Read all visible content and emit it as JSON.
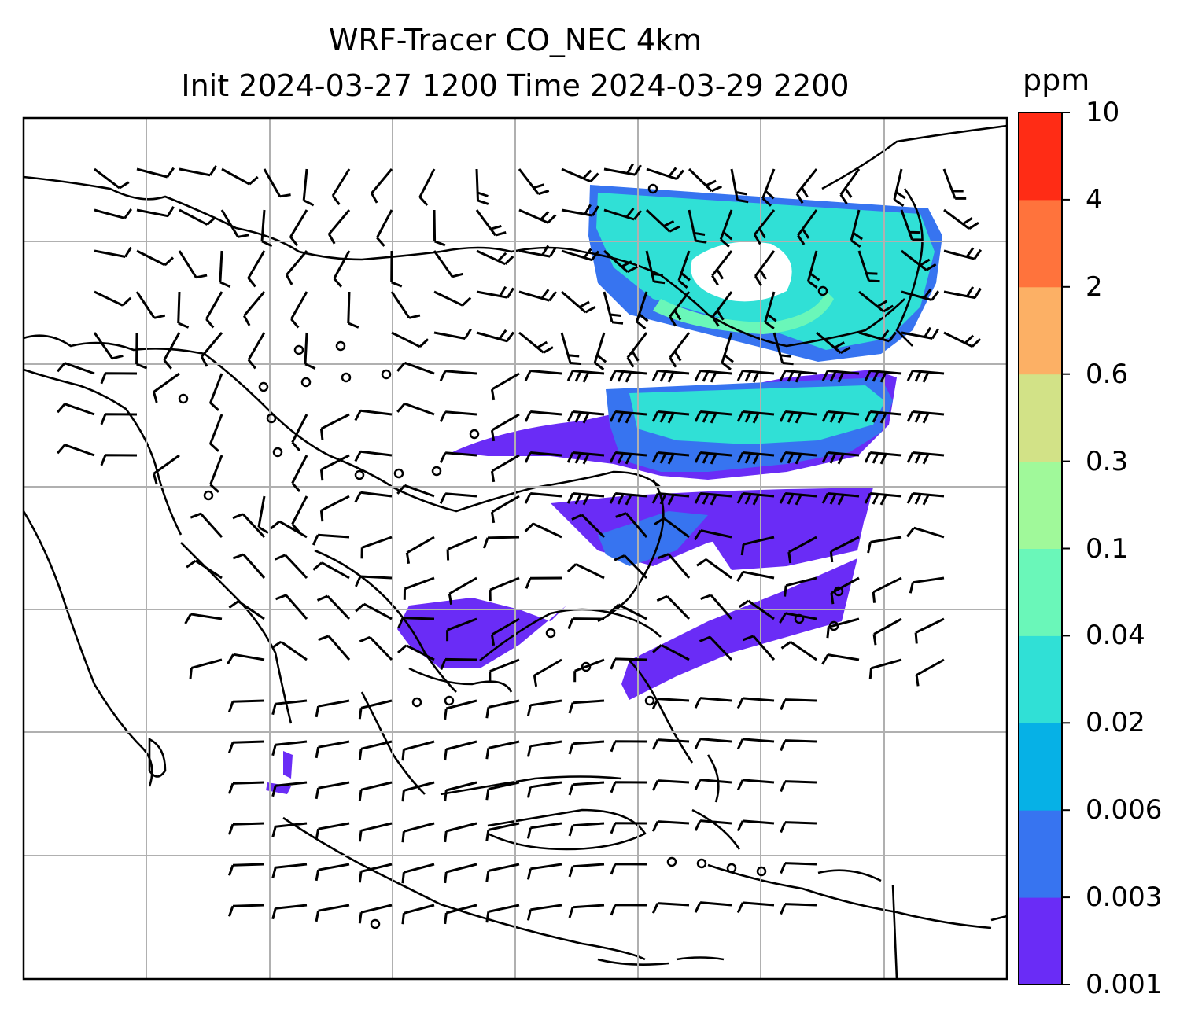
{
  "title": {
    "line1": "WRF-Tracer CO_NEC 4km",
    "line2": "Init 2024-03-27 1200 Time 2024-03-29 2200"
  },
  "colorbar": {
    "unit": "ppm",
    "ticks": [
      "10",
      "4",
      "2",
      "0.6",
      "0.3",
      "0.1",
      "0.04",
      "0.02",
      "0.006",
      "0.003",
      "0.001"
    ],
    "colors": [
      "#6a2cf6",
      "#3774f0",
      "#06b1e6",
      "#30e0d6",
      "#6af7b9",
      "#a0f99a",
      "#d2e287",
      "#fcb065",
      "#ff733c",
      "#ff2c15"
    ]
  },
  "map": {
    "gridlines": true,
    "plume_colors": {
      "low": "#6a2cf6",
      "mid": "#3774f0",
      "high": "#30e0d6",
      "peak": "#6af7b9"
    }
  }
}
